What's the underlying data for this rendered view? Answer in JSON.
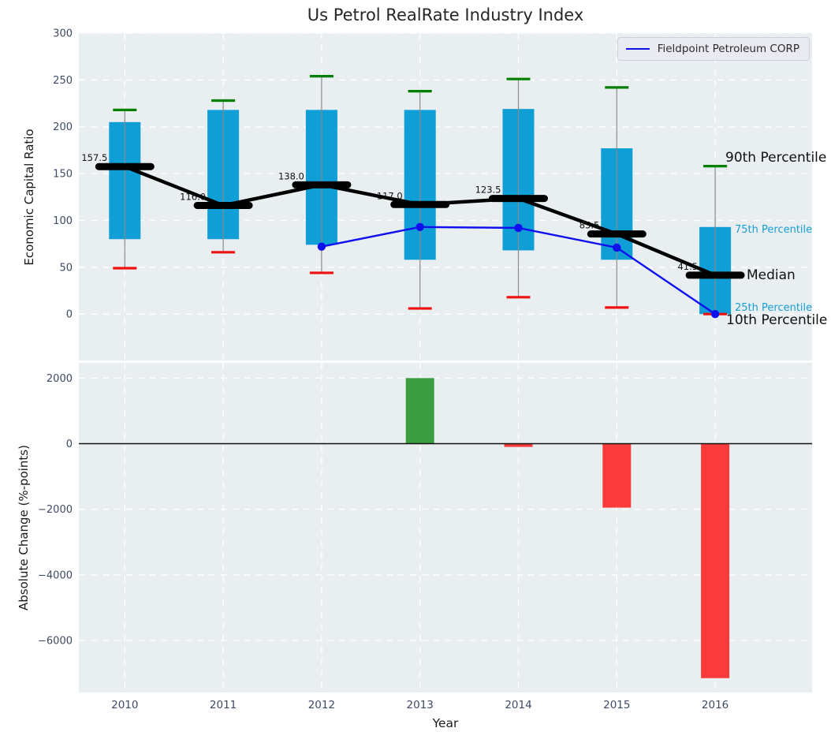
{
  "title": "Us Petrol RealRate Industry Index",
  "legend": {
    "label": "Fieldpoint Petroleum CORP"
  },
  "annotations": {
    "p90": "90th Percentile",
    "p75": "75th Percentile",
    "median": "Median",
    "p25": "25th Percentile",
    "p10": "10th Percentile"
  },
  "colors": {
    "panel_bg": "#e9eef0",
    "grid": "#ffffff",
    "box_fill": "#0f9ed5",
    "whisker": "#8a8a8a",
    "cap_top": "#007f00",
    "cap_bottom": "#ee1111",
    "median_line": "#000000",
    "company_line": "#1010ee",
    "bar_positive": "#3a9e41",
    "bar_negative": "#fb3b3b",
    "tick_text": "#3d4a63",
    "label_text": "#111111",
    "zero_line": "#111111"
  },
  "chart_data": [
    {
      "type": "boxplot",
      "title": "Us Petrol RealRate Industry Index",
      "ylabel": "Economic Capital Ratio",
      "categories": [
        "2010",
        "2011",
        "2012",
        "2013",
        "2014",
        "2015",
        "2016"
      ],
      "yticks": [
        0,
        50,
        100,
        150,
        200,
        250,
        300
      ],
      "ylim": [
        -50,
        300
      ],
      "grid": true,
      "legend_position": "upper right",
      "series": {
        "p90": [
          218,
          228,
          254,
          238,
          251,
          242,
          158
        ],
        "p75": [
          205,
          218,
          218,
          218,
          219,
          177,
          93
        ],
        "median": [
          157.5,
          116.0,
          138.0,
          117.0,
          123.5,
          85.5,
          41.5
        ],
        "p25": [
          80,
          80,
          74,
          58,
          68,
          58,
          0
        ],
        "p10": [
          49,
          66,
          44,
          6,
          18,
          7,
          0
        ]
      },
      "median_labels": [
        "157.5",
        "116.0",
        "138.0",
        "117.0",
        "123.5",
        "85.5",
        "41.5"
      ],
      "company_line": {
        "name": "Fieldpoint Petroleum CORP",
        "categories": [
          "2012",
          "2013",
          "2014",
          "2015",
          "2016"
        ],
        "values": [
          72,
          93,
          92,
          71,
          0
        ]
      }
    },
    {
      "type": "bar",
      "ylabel": "Absolute Change (%-points)",
      "xlabel": "Year",
      "categories": [
        "2010",
        "2011",
        "2012",
        "2013",
        "2014",
        "2015",
        "2016"
      ],
      "values": [
        null,
        null,
        null,
        2000,
        -100,
        -1950,
        -7150
      ],
      "yticks": [
        2000,
        0,
        -2000,
        -4000,
        -6000
      ],
      "ylim": [
        -7600,
        2470
      ],
      "zero_line": true,
      "grid": true
    }
  ]
}
